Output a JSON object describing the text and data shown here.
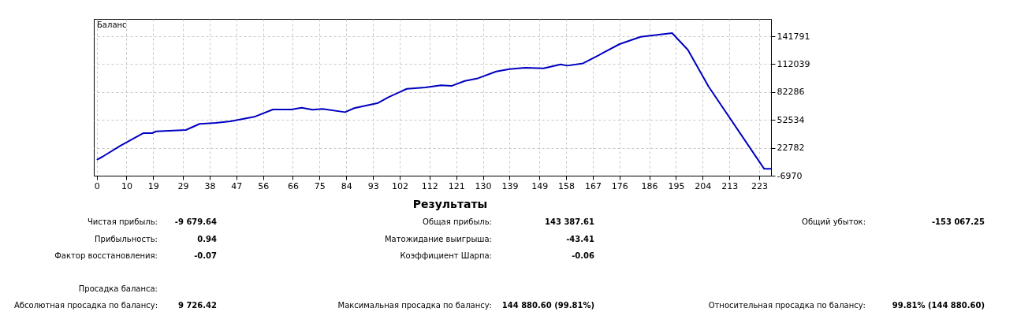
{
  "chart_data": {
    "type": "line",
    "x": [
      0,
      1.9,
      8,
      15.6,
      18.6,
      20,
      30,
      34.6,
      40,
      45,
      53,
      59.3,
      65.5,
      69,
      72.6,
      76,
      83.6,
      86.7,
      94.7,
      98.2,
      104.4,
      110.6,
      115.9,
      119.4,
      123.9,
      128.3,
      134.5,
      138.9,
      144.2,
      150.4,
      156.2,
      158.4,
      163.7,
      169,
      176,
      183.1,
      193.7,
      199,
      206,
      224.7,
      227
    ],
    "series": [
      {
        "color": "#0000c0",
        "values": [
          10000,
          13200,
          25000,
          38400,
          38400,
          40300,
          41800,
          48300,
          49400,
          51000,
          55800,
          63600,
          63600,
          65600,
          63400,
          64200,
          60800,
          65100,
          70600,
          76800,
          85700,
          87200,
          89400,
          88800,
          94100,
          96900,
          104200,
          106700,
          108200,
          107600,
          111800,
          110400,
          112900,
          121600,
          133400,
          141200,
          145200,
          127300,
          88000,
          300,
          300
        ]
      }
    ],
    "xlim": [
      -1,
      227
    ],
    "xticks": [
      0,
      10,
      19,
      29,
      38,
      47,
      56,
      66,
      75,
      84,
      93,
      102,
      112,
      121,
      130,
      139,
      149,
      158,
      167,
      176,
      186,
      195,
      204,
      213,
      223
    ],
    "ylim": [
      -6970,
      160300
    ],
    "yticks": [
      -6970,
      22782,
      52534,
      82286,
      112039,
      141791
    ],
    "grid": true,
    "marker": "none",
    "line_style": "solid",
    "annotations": [
      "Баланс",
      "Результаты",
      "Чистая прибыль:",
      "-9 679.64",
      "Общая прибыль:",
      "143 387.61",
      "Общий убыток:",
      "-153 067.25",
      "Прибыльность:",
      "0.94",
      "Матожидание выигрыша:",
      "-43.41",
      "Фактор восстановления:",
      "-0.07",
      "Коэффициент Шарпа:",
      "-0.06",
      "Просадка баланса:",
      "Абсолютная просадка по балансу:",
      "9 726.42",
      "Максимальная просадка по балансу:",
      "144 880.60 (99.81%)",
      "Относительная просадка по балансу:",
      "99.81% (144 880.60)"
    ]
  }
}
